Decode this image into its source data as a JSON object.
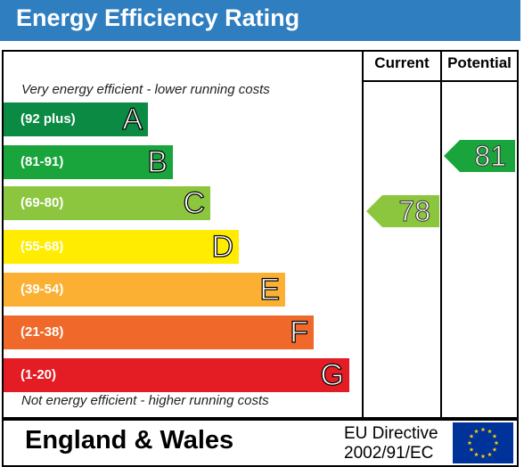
{
  "header": {
    "title": "Energy Efficiency Rating"
  },
  "columns": {
    "current": "Current",
    "potential": "Potential"
  },
  "captions": {
    "top": "Very energy efficient - lower running costs",
    "bottom": "Not energy efficient - higher running costs"
  },
  "chart_data": {
    "type": "bar",
    "categories": [
      "A",
      "B",
      "C",
      "D",
      "E",
      "F",
      "G"
    ],
    "ranges": [
      "(92 plus)",
      "(81-91)",
      "(69-80)",
      "(55-68)",
      "(39-54)",
      "(21-38)",
      "(1-20)"
    ],
    "colors": [
      "#0b8a43",
      "#1aa53c",
      "#8cc63f",
      "#ffec00",
      "#fbb033",
      "#f0692b",
      "#e31d23"
    ],
    "current": {
      "value": 78,
      "label": "78",
      "band": "C",
      "color": "#8cc63f"
    },
    "potential": {
      "value": 81,
      "label": "81",
      "band": "B",
      "color": "#1aa53c"
    }
  },
  "footer": {
    "region": "England & Wales",
    "directive_line1": "EU Directive",
    "directive_line2": "2002/91/EC",
    "flag_icon": "eu-flag-icon",
    "flag_color": "#003399",
    "star_color": "#ffcc00"
  }
}
